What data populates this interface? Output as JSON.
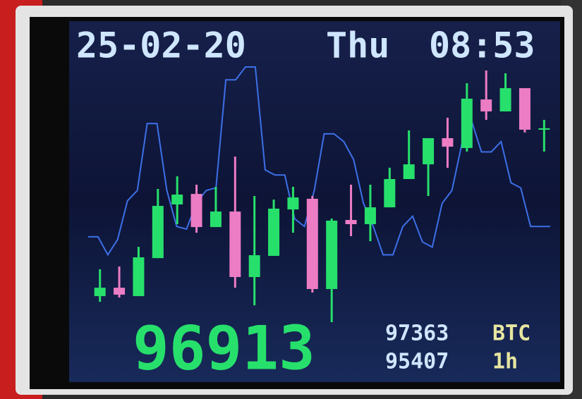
{
  "chart_data": {
    "type": "candlestick",
    "date": "25-02-20",
    "weekday": "Thu",
    "time": "08:53",
    "price": "96913",
    "high_label": "97363",
    "low_label": "95407",
    "symbol": "BTC",
    "interval": "1h",
    "ylim": [
      95407,
      97363
    ],
    "up_color": "#27e06c",
    "down_color": "#ec7cc4",
    "open": [
      95621,
      95685,
      95621,
      95910,
      96318,
      96398,
      96146,
      96264,
      95766,
      95927,
      96280,
      96361,
      95675,
      96200,
      96168,
      96296,
      96511,
      96623,
      96822,
      96747,
      97116,
      97025,
      97202,
      96886
    ],
    "high": [
      95825,
      95846,
      95996,
      96436,
      96532,
      96468,
      96452,
      96682,
      96382,
      96355,
      96452,
      96382,
      96211,
      96468,
      96468,
      96597,
      96881,
      96822,
      96977,
      97240,
      97336,
      97315,
      97202,
      96961
    ],
    "low": [
      95578,
      95610,
      95621,
      95910,
      96168,
      96103,
      96146,
      95685,
      95551,
      95927,
      96103,
      95648,
      95423,
      96077,
      96039,
      96296,
      96511,
      96382,
      96597,
      96720,
      96961,
      97025,
      96865,
      96720
    ],
    "close": [
      95685,
      95632,
      95916,
      96307,
      96393,
      96146,
      96264,
      95766,
      95932,
      96286,
      96371,
      95675,
      96195,
      96168,
      96296,
      96511,
      96623,
      96822,
      96757,
      97122,
      97025,
      97202,
      96886,
      96897
    ],
    "line": {
      "color": "#3d70e8",
      "ylim": [
        0,
        100
      ],
      "values": [
        34,
        34,
        27,
        33,
        48,
        52,
        78,
        78,
        52,
        38,
        37,
        47,
        52,
        53,
        95,
        95,
        100,
        100,
        60,
        58,
        58,
        41,
        38,
        52,
        74,
        74,
        71,
        64,
        47,
        38,
        27,
        27,
        38,
        42,
        32,
        30,
        47,
        52,
        70,
        79,
        67,
        67,
        71,
        55,
        53,
        38,
        38,
        38
      ]
    }
  }
}
